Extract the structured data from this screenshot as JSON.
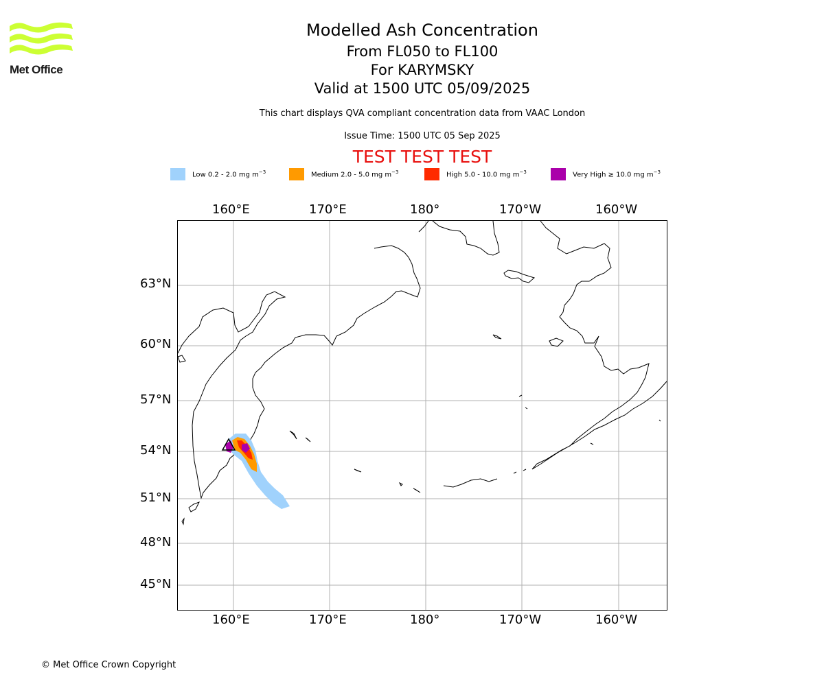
{
  "logo": {
    "text": "Met Office",
    "icon": "met-office-wave-logo",
    "color": "#ccff33"
  },
  "header": {
    "title": "Modelled Ash Concentration",
    "levels": "From FL050 to FL100",
    "volcano": "For KARYMSKY",
    "valid": "Valid at 1500 UTC 05/09/2025",
    "description": "This chart displays QVA compliant concentration data from VAAC London",
    "issue_time": "Issue Time: 1500 UTC 05 Sep 2025",
    "test_banner": "TEST TEST TEST"
  },
  "legend": [
    {
      "label": "Low 0.2 - 2.0 mg m",
      "color": "#a0d2fc"
    },
    {
      "label": "Medium 2.0 - 5.0 mg m",
      "color": "#ff9a00"
    },
    {
      "label": "High 5.0 - 10.0 mg m",
      "color": "#ff2a00"
    },
    {
      "label": "Very High ≥ 10.0 mg m",
      "color": "#aa00aa"
    }
  ],
  "legend_unit_exponent": "−3",
  "map": {
    "longitude_labels": [
      "160°E",
      "170°E",
      "180°",
      "170°W",
      "160°W"
    ],
    "latitude_labels": [
      "63°N",
      "60°N",
      "57°N",
      "54°N",
      "51°N",
      "48°N",
      "45°N"
    ],
    "volcano_marker": "triangle-icon"
  },
  "footer": {
    "copyright": "© Met Office Crown Copyright"
  }
}
